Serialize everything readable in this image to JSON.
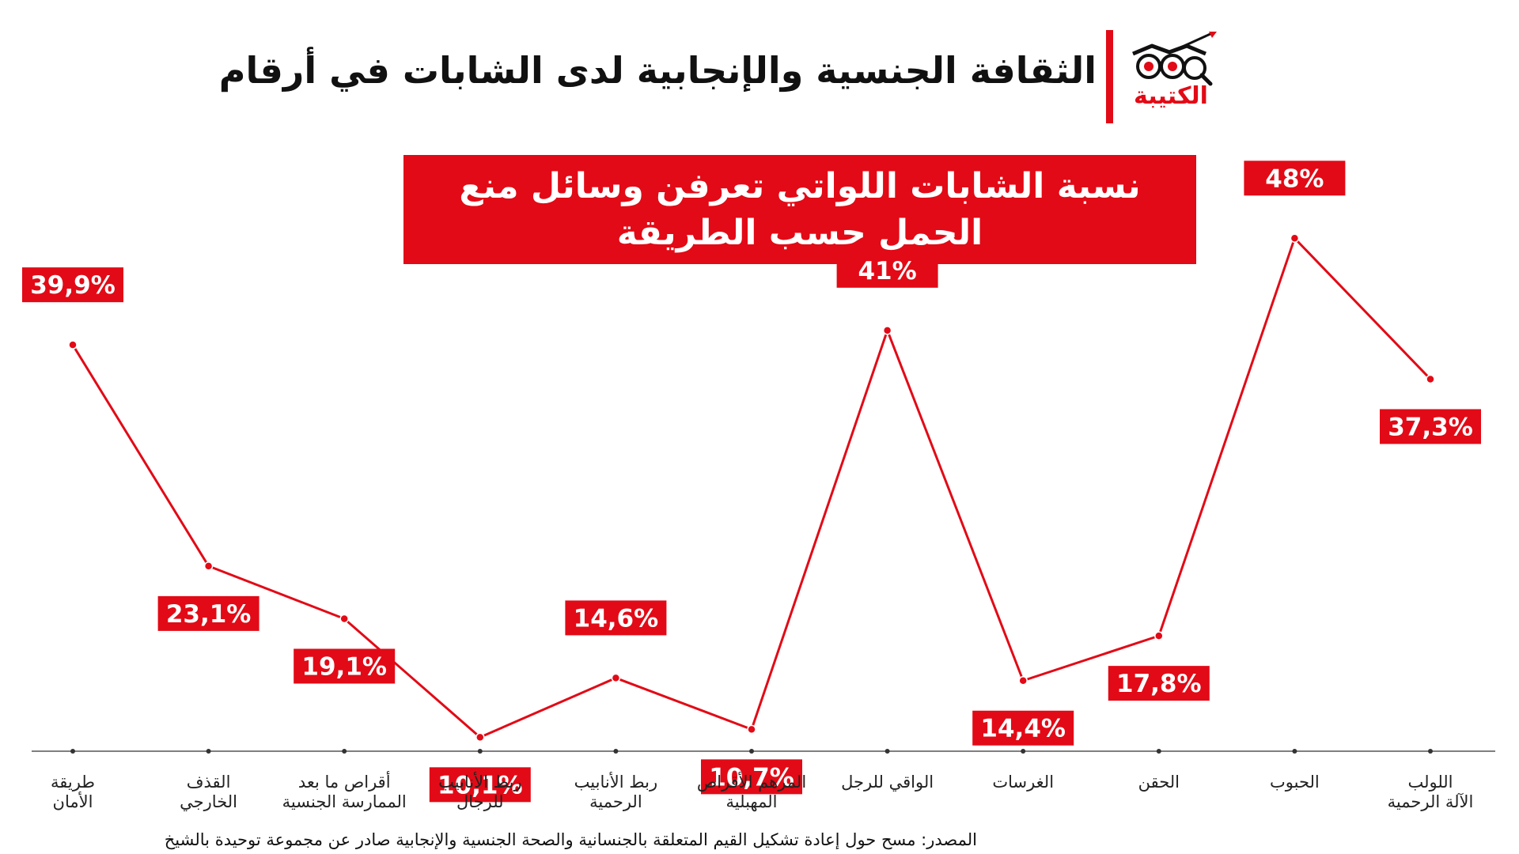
{
  "header": {
    "title": "الثقافة الجنسية والإنجابية لدى الشابات في أرقام",
    "logo_text": "الكتيبة"
  },
  "chart_data": {
    "type": "line",
    "title": "نسبة الشابات اللواتي تعرفن وسائل منع الحمل حسب الطريقة",
    "categories": [
      "طريقة\nالأمان",
      "القذف\nالخارجي",
      "أقراص ما بعد\nالممارسة الجنسية",
      "ربط الأنابيب\nللرجال",
      "ربط الأنابيب\nالرحمية",
      "المرهم الأقراص\nالمهبلية",
      "الواقي للرجل",
      "الغرسات",
      "الحقن",
      "الحبوب",
      "اللولب\nالآلة الرحمية"
    ],
    "values": [
      39.9,
      23.1,
      19.1,
      10.1,
      14.6,
      10.7,
      41,
      14.4,
      17.8,
      48,
      37.3
    ],
    "value_labels": [
      "39,9%",
      "23,1%",
      "19,1%",
      "10,1%",
      "14,6%",
      "10,7%",
      "41%",
      "14,4%",
      "17,8%",
      "48%",
      "37,3%"
    ],
    "label_positions": [
      "above",
      "below",
      "below",
      "below",
      "above",
      "below",
      "above",
      "below",
      "below",
      "above",
      "below"
    ],
    "unit": "%",
    "grid": false,
    "legend": "none",
    "colors": {
      "line": "#e20a16",
      "label_bg": "#e20a16",
      "label_text": "#ffffff",
      "axis": "#555555"
    }
  },
  "source": "المصدر: مسح حول إعادة تشكيل القيم المتعلقة بالجنسانية والصحة الجنسية والإنجابية صادر عن مجموعة توحيدة بالشيخ"
}
